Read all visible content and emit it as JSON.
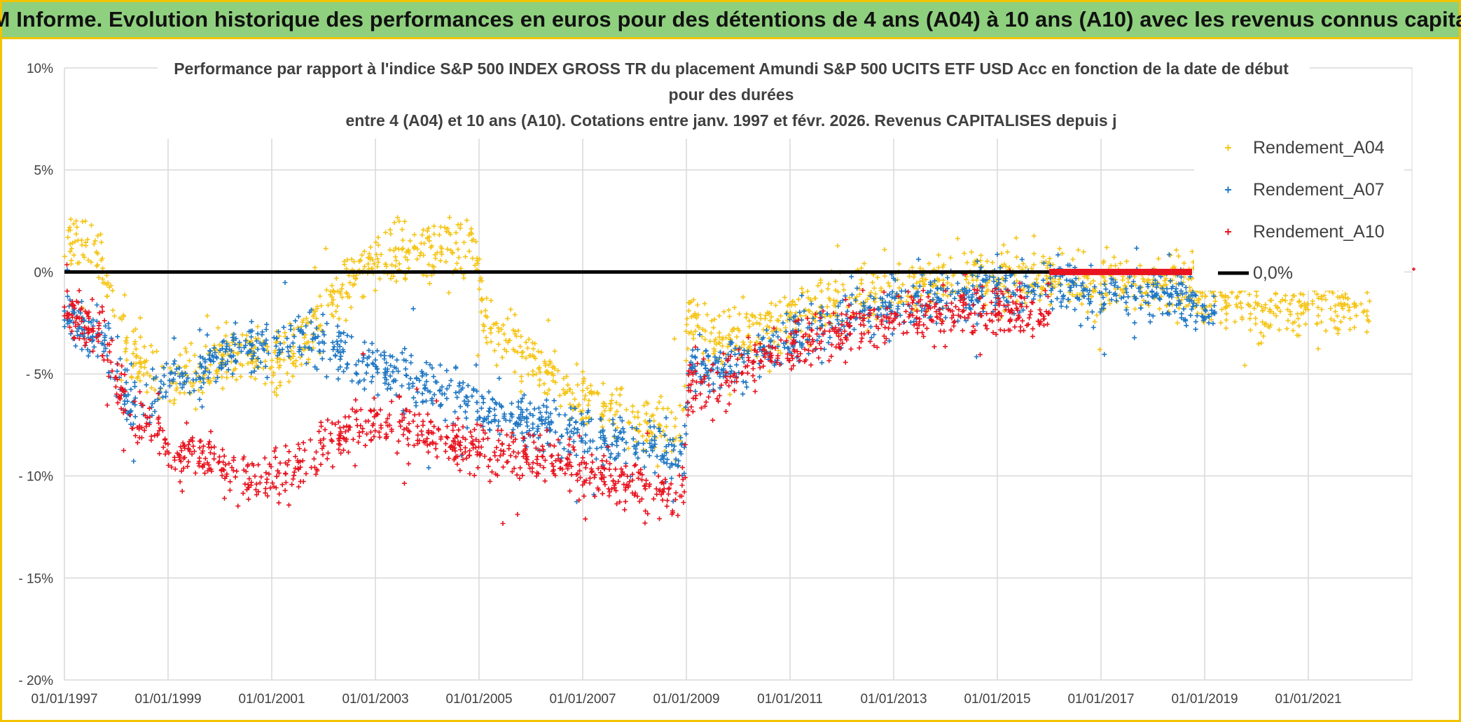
{
  "banner": {
    "title": "ADAM Informe. Evolution historique des performances en euros pour des détentions de 4 ans (A04) à 10 ans (A10) avec les revenus connus capitalisés"
  },
  "chart_data": {
    "type": "scatter",
    "title_lines": [
      "Performance par rapport à l'indice S&P 500 INDEX GROSS TR  du placement Amundi S&P 500 UCITS ETF USD Acc en fonction de la date de début",
      "pour des durées",
      "entre 4 (A04) et 10 ans (A10). Cotations entre janv. 1997 et févr. 2026. Revenus CAPITALISES depuis j"
    ],
    "xlabel": "",
    "ylabel": "",
    "xlim": [
      1997.0,
      2023.0
    ],
    "ylim": [
      -20,
      10
    ],
    "x_ticks": [
      1997,
      1999,
      2001,
      2003,
      2005,
      2007,
      2009,
      2011,
      2013,
      2015,
      2017,
      2019,
      2021
    ],
    "x_tick_labels": [
      "01/01/1997",
      "01/01/1999",
      "01/01/2001",
      "01/01/2003",
      "01/01/2005",
      "01/01/2007",
      "01/01/2009",
      "01/01/2011",
      "01/01/2013",
      "01/01/2015",
      "01/01/2017",
      "01/01/2019",
      "01/01/2021"
    ],
    "y_ticks": [
      10,
      5,
      0,
      -5,
      -10,
      -15,
      -20
    ],
    "y_tick_labels": [
      "10%",
      "5%",
      "0%",
      "- 5%",
      "- 10%",
      "- 15%",
      "- 20%"
    ],
    "legend_position": "right",
    "reference_line": {
      "name": "0,0%",
      "y": 0,
      "color": "#000000"
    },
    "series": [
      {
        "name": "Rendement_A04",
        "color": "#f5c518",
        "x_range": [
          1997.0,
          2022.2
        ],
        "trend_x": [
          1997.0,
          1997.4,
          1997.7,
          1998.0,
          1998.3,
          1998.7,
          1999.0,
          1999.5,
          2000.0,
          2000.5,
          2001.0,
          2001.5,
          2002.0,
          2002.5,
          2003.0,
          2003.5,
          2004.0,
          2004.5,
          2004.9,
          2005.1,
          2005.5,
          2006.0,
          2006.5,
          2007.0,
          2007.5,
          2008.0,
          2008.5,
          2008.9,
          2009.05,
          2009.3,
          2009.6,
          2010.0,
          2010.5,
          2011.0,
          2011.5,
          2012.0,
          2012.5,
          2013.0,
          2013.5,
          2014.0,
          2014.5,
          2015.0,
          2015.5,
          2016.0,
          2016.3,
          2016.6,
          2017.0,
          2017.5,
          2018.0,
          2018.5,
          2019.0,
          2019.5,
          2020.0,
          2020.5,
          2021.0,
          2021.5,
          2022.2
        ],
        "trend_y": [
          1.5,
          1.8,
          0.0,
          -2.0,
          -4.0,
          -5.0,
          -5.5,
          -5.0,
          -4.5,
          -4.0,
          -4.5,
          -3.8,
          -2.0,
          -0.3,
          0.6,
          1.1,
          1.0,
          0.8,
          1.6,
          -2.5,
          -3.5,
          -4.2,
          -5.2,
          -6.2,
          -6.8,
          -7.3,
          -7.7,
          -7.8,
          -2.0,
          -3.2,
          -3.5,
          -3.2,
          -2.8,
          -2.3,
          -1.7,
          -1.4,
          -1.1,
          -0.8,
          -0.6,
          -0.5,
          -0.4,
          -0.3,
          -0.4,
          -0.6,
          -0.3,
          -0.4,
          -0.6,
          -0.7,
          -0.3,
          -0.4,
          -1.3,
          -1.4,
          -1.5,
          -1.5,
          -1.5,
          -1.5,
          -1.8
        ],
        "spread": 1.0
      },
      {
        "name": "Rendement_A07",
        "color": "#1f77c4",
        "x_range": [
          1997.0,
          2019.2
        ],
        "trend_x": [
          1997.0,
          1997.4,
          1997.7,
          1998.0,
          1998.3,
          1998.7,
          1999.0,
          1999.5,
          2000.0,
          2000.5,
          2001.0,
          2001.5,
          2002.0,
          2002.5,
          2003.0,
          2003.5,
          2004.0,
          2004.5,
          2005.0,
          2005.5,
          2006.0,
          2006.5,
          2007.0,
          2007.5,
          2008.0,
          2008.5,
          2008.95,
          2009.05,
          2009.3,
          2009.6,
          2010.0,
          2010.5,
          2011.0,
          2011.5,
          2012.0,
          2012.5,
          2013.0,
          2013.5,
          2014.0,
          2014.5,
          2015.0,
          2015.5,
          2016.0,
          2016.3,
          2016.6,
          2017.0,
          2017.5,
          2018.0,
          2018.5,
          2019.2
        ],
        "trend_y": [
          -2.0,
          -3.0,
          -3.0,
          -5.0,
          -6.5,
          -6.2,
          -5.5,
          -4.8,
          -4.3,
          -3.8,
          -3.5,
          -3.2,
          -3.5,
          -4.2,
          -4.7,
          -5.1,
          -5.6,
          -6.1,
          -6.6,
          -6.9,
          -7.2,
          -7.5,
          -7.9,
          -8.2,
          -8.5,
          -8.7,
          -9.0,
          -4.5,
          -4.5,
          -4.8,
          -4.4,
          -3.6,
          -3.2,
          -2.7,
          -2.3,
          -1.8,
          -1.6,
          -1.4,
          -1.2,
          -1.0,
          -0.9,
          -0.8,
          -0.9,
          -0.8,
          -1.0,
          -1.1,
          -1.1,
          -1.0,
          -1.1,
          -2.0
        ],
        "spread": 0.9
      },
      {
        "name": "Rendement_A10",
        "color": "#e8131f",
        "x_range": [
          1997.0,
          2016.0
        ],
        "trend_x": [
          1997.0,
          1997.4,
          1997.7,
          1998.0,
          1998.3,
          1998.7,
          1999.0,
          1999.5,
          2000.0,
          2000.5,
          2001.0,
          2001.5,
          2002.0,
          2002.5,
          2003.0,
          2003.5,
          2004.0,
          2004.5,
          2005.0,
          2005.5,
          2006.0,
          2006.5,
          2007.0,
          2007.5,
          2008.0,
          2008.5,
          2008.95,
          2009.05,
          2009.3,
          2009.6,
          2010.0,
          2010.5,
          2011.0,
          2011.5,
          2012.0,
          2012.5,
          2013.0,
          2013.5,
          2014.0,
          2014.5,
          2015.0,
          2015.5,
          2016.0
        ],
        "trend_y": [
          -1.8,
          -2.5,
          -3.0,
          -5.0,
          -7.0,
          -7.8,
          -8.5,
          -9.0,
          -9.5,
          -10.0,
          -10.2,
          -9.7,
          -8.5,
          -7.8,
          -7.3,
          -7.6,
          -7.8,
          -8.2,
          -8.6,
          -8.9,
          -9.1,
          -9.4,
          -9.7,
          -10.0,
          -10.5,
          -10.7,
          -10.8,
          -5.5,
          -5.5,
          -5.4,
          -4.8,
          -4.2,
          -3.8,
          -3.2,
          -2.9,
          -2.6,
          -2.3,
          -2.1,
          -2.0,
          -1.9,
          -1.9,
          -1.8,
          -2.0
        ],
        "spread": 0.9
      }
    ]
  }
}
